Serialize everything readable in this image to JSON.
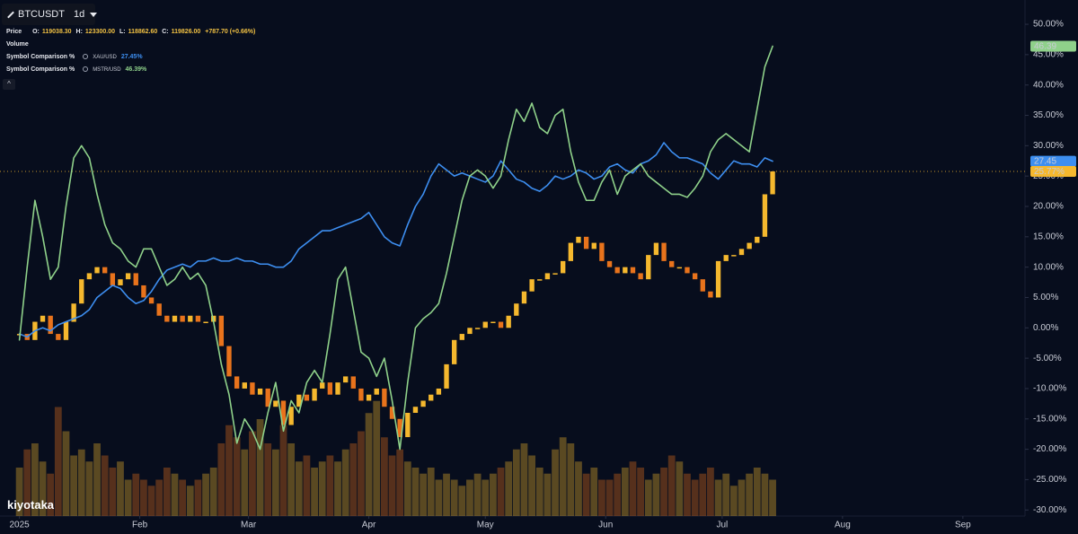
{
  "chart_data": {
    "type": "candlestick",
    "symbol": "BTCUSDT",
    "interval": "1d",
    "price_label": "Price",
    "ohlc": {
      "o_label": "O:",
      "o": "119038.30",
      "h_label": "H:",
      "h": "123300.00",
      "l_label": "L:",
      "l": "118862.60",
      "c_label": "C:",
      "c": "119826.00",
      "change": "+787.70 (+0.66%)"
    },
    "volume_label": "Volume",
    "logo": "kiyotaka",
    "x": [
      0,
      2,
      4,
      6,
      8,
      10,
      12,
      14,
      16,
      18,
      20,
      22,
      24,
      26,
      28,
      30,
      32,
      34,
      36,
      38,
      40,
      42,
      44,
      46,
      48,
      50,
      52,
      54,
      56,
      58,
      60,
      62,
      64,
      66,
      68,
      70,
      72,
      74,
      76,
      78,
      80,
      82,
      84,
      86,
      88,
      90,
      92,
      94,
      96,
      98,
      100,
      102,
      104,
      106,
      108,
      110,
      112,
      114,
      116,
      118,
      120,
      122,
      124,
      126,
      128,
      130,
      132,
      134,
      136,
      138,
      140,
      142,
      144,
      146,
      148,
      150,
      152,
      154,
      156,
      158,
      160,
      162,
      164,
      166,
      168,
      170,
      172,
      174,
      176,
      178,
      180,
      182,
      184,
      186,
      188,
      190,
      192,
      194
    ],
    "xlim": [
      -5,
      259
    ],
    "xticks": [
      {
        "value": 0,
        "label": "2025"
      },
      {
        "value": 31,
        "label": "Feb"
      },
      {
        "value": 59,
        "label": "Mar"
      },
      {
        "value": 90,
        "label": "Apr"
      },
      {
        "value": 120,
        "label": "May"
      },
      {
        "value": 151,
        "label": "Jun"
      },
      {
        "value": 181,
        "label": "Jul"
      },
      {
        "value": 212,
        "label": "Aug"
      },
      {
        "value": 243,
        "label": "Sep"
      }
    ],
    "ylim": [
      -31,
      54
    ],
    "yticks": [
      {
        "value": 50,
        "label": "50.00%"
      },
      {
        "value": 45,
        "label": "45.00%"
      },
      {
        "value": 40,
        "label": "40.00%"
      },
      {
        "value": 35,
        "label": "35.00%"
      },
      {
        "value": 30,
        "label": "30.00%"
      },
      {
        "value": 25,
        "label": "25.00%"
      },
      {
        "value": 20,
        "label": "20.00%"
      },
      {
        "value": 15,
        "label": "15.00%"
      },
      {
        "value": 10,
        "label": "10.00%"
      },
      {
        "value": 5,
        "label": "5.00%"
      },
      {
        "value": 0,
        "label": "0.00%"
      },
      {
        "value": -5,
        "label": "-5.00%"
      },
      {
        "value": -10,
        "label": "-10.00%"
      },
      {
        "value": -15,
        "label": "-15.00%"
      },
      {
        "value": -20,
        "label": "-20.00%"
      },
      {
        "value": -25,
        "label": "-25.00%"
      },
      {
        "value": -30,
        "label": "-30.00%"
      }
    ],
    "grid": false,
    "candles": {
      "name": "BTCUSDT",
      "up_color": "#f5b82e",
      "down_color": "#e8731c",
      "last_label": "25.77%",
      "values": [
        -1,
        -2,
        1,
        2,
        -1,
        -2,
        1,
        4,
        8,
        9,
        10,
        9,
        7,
        8,
        9,
        7,
        5,
        4,
        2,
        1,
        2,
        1,
        2,
        1,
        1,
        2,
        -3,
        -8,
        -10,
        -9,
        -11,
        -10,
        -13,
        -12,
        -16,
        -13,
        -11,
        -12,
        -10,
        -9,
        -11,
        -9,
        -8,
        -10,
        -12,
        -11,
        -10,
        -13,
        -15,
        -18,
        -14,
        -13,
        -12,
        -11,
        -10,
        -6,
        -2,
        -1,
        0,
        0,
        1,
        1,
        0,
        2,
        4,
        6,
        8,
        8,
        9,
        9,
        11,
        14,
        15,
        13,
        14,
        11,
        10,
        9,
        10,
        9,
        8,
        12,
        14,
        11,
        10,
        10,
        9,
        8,
        6,
        5,
        11,
        12,
        12,
        13,
        14,
        15,
        22,
        25.77
      ]
    },
    "volume": {
      "values": [
        40,
        55,
        60,
        45,
        35,
        90,
        70,
        50,
        55,
        45,
        60,
        50,
        40,
        45,
        30,
        35,
        30,
        25,
        30,
        40,
        35,
        30,
        25,
        30,
        35,
        40,
        60,
        75,
        65,
        55,
        70,
        80,
        60,
        55,
        75,
        60,
        45,
        50,
        40,
        45,
        50,
        45,
        55,
        60,
        70,
        85,
        95,
        65,
        50,
        55,
        45,
        40,
        35,
        40,
        30,
        35,
        30,
        25,
        30,
        35,
        30,
        35,
        40,
        45,
        55,
        60,
        50,
        40,
        35,
        55,
        65,
        60,
        45,
        35,
        40,
        30,
        30,
        35,
        40,
        45,
        40,
        30,
        35,
        40,
        50,
        45,
        35,
        30,
        35,
        40,
        30,
        35,
        25,
        30,
        35,
        40,
        35,
        30
      ]
    },
    "series": [
      {
        "name": "XAU/USD",
        "legend_title": "Symbol Comparison %",
        "color": "#3d8ef0",
        "value_label": "27.45%",
        "last_label": "27.45",
        "values": [
          -1,
          -1.5,
          -0.5,
          0,
          -0.5,
          0.5,
          1,
          1.5,
          2,
          3,
          5,
          6,
          7,
          6.5,
          5,
          4,
          4.5,
          6,
          8,
          9.5,
          10,
          10.5,
          10,
          11,
          11,
          11.5,
          11,
          11,
          11.5,
          11,
          11,
          10.5,
          10.5,
          10,
          10,
          11,
          13,
          14,
          15,
          16,
          16,
          16.5,
          17,
          17.5,
          18,
          19,
          17,
          15,
          14,
          13.5,
          17,
          20,
          22,
          25,
          27,
          26,
          25,
          25.5,
          25,
          24.5,
          24,
          25,
          27.5,
          26,
          24.5,
          24,
          23,
          22.5,
          23.5,
          25,
          24.5,
          25,
          26,
          25.5,
          24.5,
          25,
          26.5,
          27,
          26,
          25.5,
          27,
          27.5,
          28.5,
          30.5,
          29,
          28,
          28,
          27.5,
          27,
          25.5,
          24.5,
          26,
          27.5,
          27,
          27,
          26.5,
          28,
          27.45
        ]
      },
      {
        "name": "MSTR/USD",
        "legend_title": "Symbol Comparison %",
        "color": "#8fd18a",
        "value_label": "46.39%",
        "last_label": "46.39",
        "values": [
          -2,
          10,
          21,
          15,
          8,
          10,
          20,
          28,
          30,
          28,
          22,
          17,
          14,
          13,
          11,
          10,
          13,
          13,
          10,
          7,
          8,
          10,
          8,
          9,
          7,
          1,
          -6,
          -11,
          -19,
          -15,
          -17,
          -20,
          -14,
          -9,
          -17,
          -12,
          -14,
          -9,
          -7,
          -9,
          -1,
          8,
          10,
          3,
          -4,
          -5,
          -8,
          -5,
          -12,
          -20,
          -9,
          0,
          1.5,
          2.5,
          4,
          9,
          15,
          21,
          25,
          26,
          25,
          23,
          25,
          31,
          36,
          34,
          37,
          33,
          32,
          35,
          36,
          29,
          24,
          21,
          21,
          24,
          26,
          22,
          25,
          26,
          27,
          25,
          24,
          23,
          22,
          22,
          21.5,
          23,
          25,
          29,
          31,
          32,
          31,
          30,
          29,
          36,
          43,
          46.39
        ]
      }
    ]
  }
}
